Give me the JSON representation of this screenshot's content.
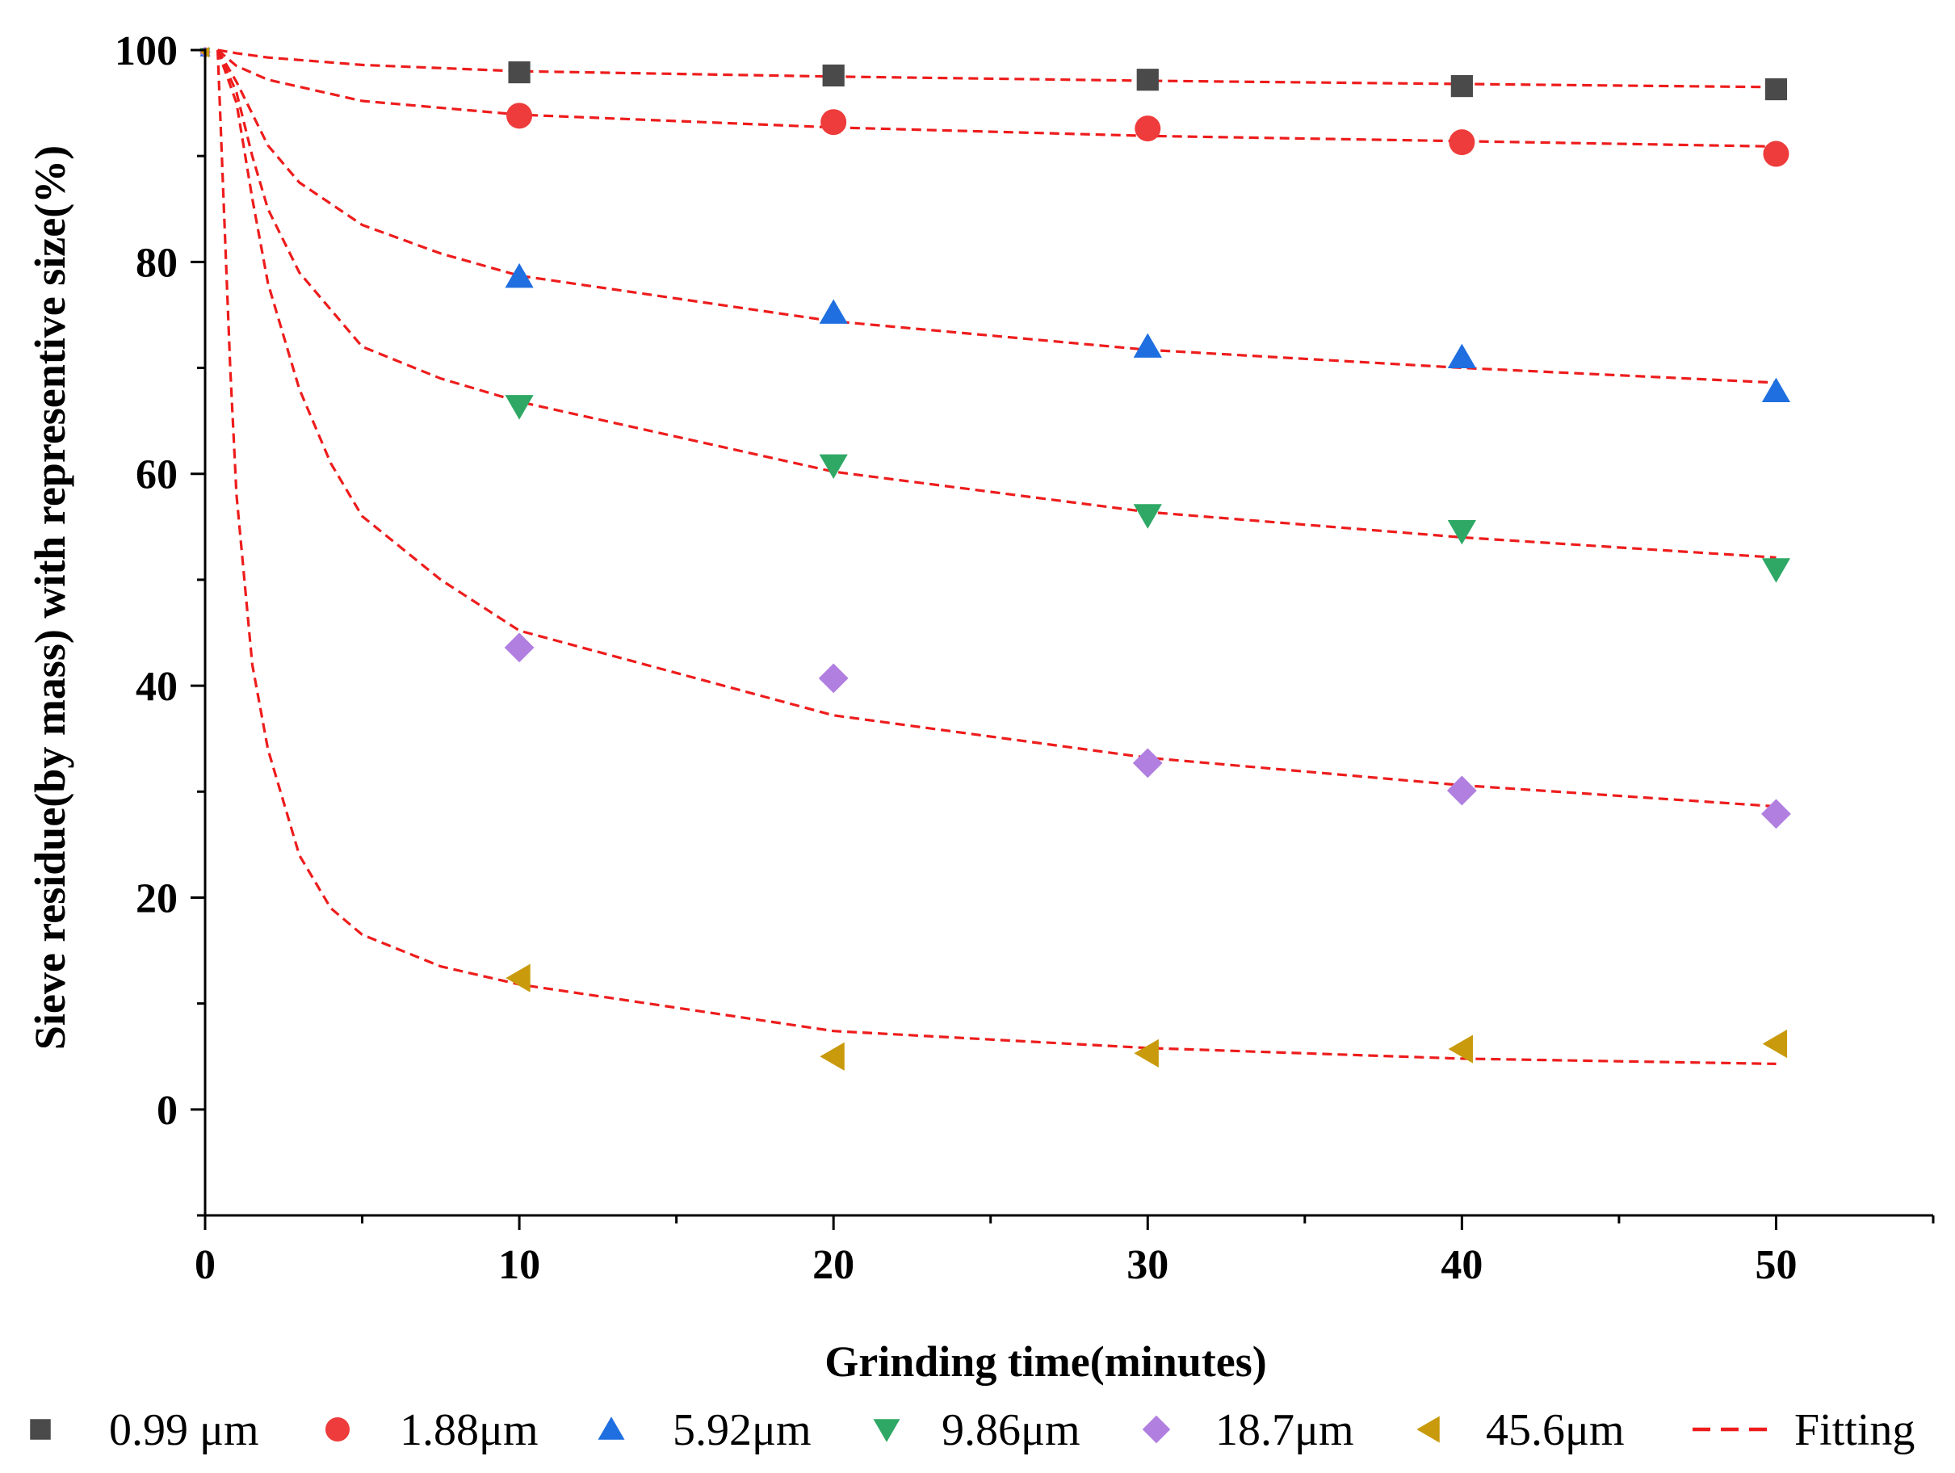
{
  "chart_data": {
    "type": "scatter",
    "xlabel": "Grinding time(minutes)",
    "ylabel": "Sieve residue(by mass) with representive size(%)",
    "xlim": [
      0,
      55
    ],
    "ylim": [
      -10,
      100
    ],
    "x_ticks": [
      0,
      10,
      20,
      30,
      40,
      50
    ],
    "y_ticks": [
      0,
      20,
      40,
      60,
      80,
      100
    ],
    "x_tick_labels": [
      "0",
      "10",
      "20",
      "30",
      "40",
      "50"
    ],
    "y_tick_labels": [
      "0",
      "20",
      "40",
      "60",
      "80",
      "100"
    ],
    "x_minor_ticks": [
      5,
      15,
      25,
      35,
      45,
      55
    ],
    "y_minor_ticks": [
      -10,
      10,
      30,
      50,
      70,
      90
    ],
    "legend_position": "bottom",
    "series": [
      {
        "name": "0.99 μm",
        "marker": "square",
        "color": "#4a4a4a",
        "x": [
          0,
          10,
          20,
          30,
          40,
          50
        ],
        "y": [
          99.8,
          97.9,
          97.6,
          97.2,
          96.6,
          96.3
        ]
      },
      {
        "name": "1.88μm",
        "marker": "circle",
        "color": "#ee3b3b",
        "x": [
          0,
          10,
          20,
          30,
          40,
          50
        ],
        "y": [
          99.8,
          93.8,
          93.2,
          92.6,
          91.3,
          90.2
        ]
      },
      {
        "name": "5.92μm",
        "marker": "triangle-up",
        "color": "#1f6fe0",
        "x": [
          0,
          10,
          20,
          30,
          40,
          50
        ],
        "y": [
          99.8,
          78.6,
          75.2,
          72.0,
          71.0,
          67.8
        ]
      },
      {
        "name": "9.86μm",
        "marker": "triangle-down",
        "color": "#2fa866",
        "x": [
          0,
          10,
          20,
          30,
          40,
          50
        ],
        "y": [
          99.8,
          66.4,
          60.8,
          56.1,
          54.6,
          51.0
        ]
      },
      {
        "name": "18.7μm",
        "marker": "diamond",
        "color": "#b07fe0",
        "x": [
          0,
          10,
          20,
          30,
          40,
          50
        ],
        "y": [
          99.8,
          43.6,
          40.7,
          32.7,
          30.1,
          27.9
        ]
      },
      {
        "name": "45.6μm",
        "marker": "triangle-left",
        "color": "#c89a0c",
        "x": [
          0,
          10,
          20,
          30,
          40,
          50
        ],
        "y": [
          99.8,
          12.4,
          5.0,
          5.3,
          5.7,
          6.2
        ]
      }
    ],
    "fitting": {
      "name": "Fitting",
      "color": "#ee1c1c",
      "style": "dashed",
      "curves": [
        {
          "for": "0.99 μm",
          "x": [
            0.4,
            1,
            2,
            5,
            10,
            20,
            30,
            40,
            50
          ],
          "y": [
            100,
            99.7,
            99.3,
            98.6,
            98.0,
            97.5,
            97.1,
            96.8,
            96.5
          ]
        },
        {
          "for": "1.88μm",
          "x": [
            0.4,
            1,
            2,
            5,
            10,
            20,
            30,
            40,
            50
          ],
          "y": [
            100,
            98.5,
            97.2,
            95.2,
            93.9,
            92.7,
            91.9,
            91.4,
            90.9
          ]
        },
        {
          "for": "5.92μm",
          "x": [
            0.4,
            1,
            2,
            3,
            5,
            7.5,
            10,
            20,
            30,
            40,
            50
          ],
          "y": [
            100,
            97.0,
            91.0,
            87.5,
            83.5,
            80.8,
            78.7,
            74.4,
            71.7,
            70.0,
            68.6
          ]
        },
        {
          "for": "9.86μm",
          "x": [
            0.4,
            1,
            1.5,
            2,
            3,
            5,
            7.5,
            10,
            20,
            30,
            40,
            50
          ],
          "y": [
            100,
            96.0,
            90.0,
            85.0,
            79.0,
            72.0,
            69.0,
            66.8,
            60.2,
            56.4,
            54.0,
            52.1
          ]
        },
        {
          "for": "18.7μm",
          "x": [
            0.4,
            1,
            1.5,
            2,
            3,
            4,
            5,
            7.5,
            10,
            20,
            30,
            40,
            50
          ],
          "y": [
            100,
            95.0,
            86.0,
            78.0,
            68.0,
            61.0,
            56.0,
            50.0,
            45.2,
            37.2,
            33.2,
            30.6,
            28.6
          ]
        },
        {
          "for": "45.6μm",
          "x": [
            0.4,
            0.6,
            0.8,
            1,
            1.5,
            2,
            3,
            4,
            5,
            7.5,
            10,
            20,
            30,
            40,
            50
          ],
          "y": [
            100,
            85.0,
            70.0,
            58.0,
            42.0,
            34.0,
            24.0,
            19.0,
            16.5,
            13.5,
            11.8,
            7.4,
            5.8,
            4.8,
            4.3
          ]
        }
      ]
    }
  }
}
